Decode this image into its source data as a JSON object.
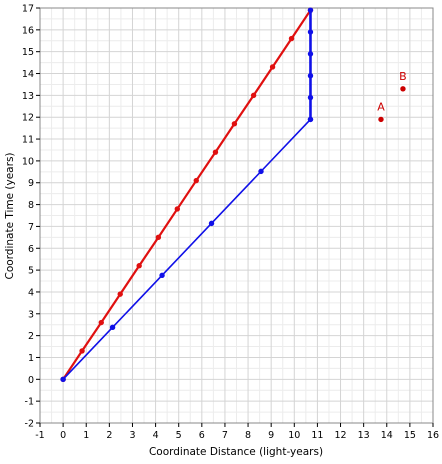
{
  "chart_data": {
    "type": "line",
    "title": "",
    "xlabel": "Coordinate Distance (light-years)",
    "ylabel": "Coordinate Time (years)",
    "xlim": [
      -1,
      16
    ],
    "ylim": [
      -2,
      17
    ],
    "xticks": [
      -1,
      0,
      1,
      2,
      3,
      4,
      5,
      6,
      7,
      8,
      9,
      10,
      11,
      12,
      13,
      14,
      15,
      16
    ],
    "yticks": [
      -2,
      -1,
      0,
      1,
      2,
      3,
      4,
      5,
      6,
      7,
      8,
      9,
      10,
      11,
      12,
      13,
      14,
      15,
      16,
      17
    ],
    "grid": true,
    "grid_minor": true,
    "colors": {
      "red": "#e01010",
      "blue": "#1010e8",
      "grid": "#d4d4d4",
      "grid_minor": "#ececec",
      "label": "#cc0000"
    },
    "series": [
      {
        "color": "#e01010",
        "line_width": 2.2,
        "x": [
          0,
          0.82,
          1.65,
          2.47,
          3.29,
          4.12,
          4.94,
          5.76,
          6.59,
          7.41,
          8.24,
          9.06,
          9.88,
          10.7
        ],
        "y": [
          0,
          1.3,
          2.6,
          3.9,
          5.2,
          6.5,
          7.8,
          9.1,
          10.4,
          11.7,
          13.0,
          14.3,
          15.6,
          16.9
        ]
      },
      {
        "color": "#1010e8",
        "line_width": 1.6,
        "x": [
          0,
          2.14,
          4.28,
          6.42,
          8.56,
          10.7
        ],
        "y": [
          0,
          2.38,
          4.76,
          7.14,
          9.52,
          11.9
        ]
      },
      {
        "color": "#1010e8",
        "line_width": 2.6,
        "x": [
          10.7,
          10.7,
          10.7,
          10.7,
          10.7,
          10.7
        ],
        "y": [
          11.9,
          12.9,
          13.9,
          14.9,
          15.9,
          16.9
        ]
      }
    ],
    "annotations": [
      {
        "label": "A",
        "x": 13.75,
        "y": 11.9,
        "color": "#cc0000"
      },
      {
        "label": "B",
        "x": 14.7,
        "y": 13.3,
        "color": "#cc0000"
      }
    ]
  }
}
